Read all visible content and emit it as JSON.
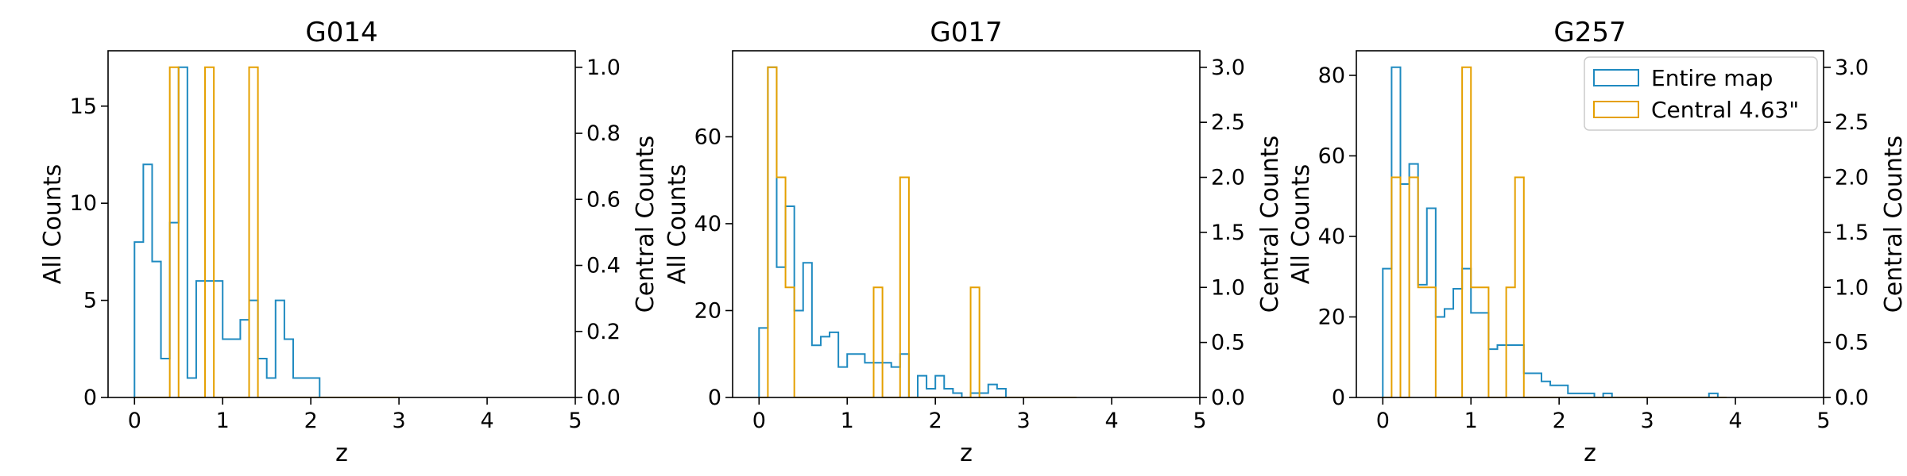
{
  "colors": {
    "entire": "#1f8ac0",
    "central": "#e5a000"
  },
  "legend": {
    "entire": "Entire map",
    "central": "Central 4.63\""
  },
  "chart_data": [
    {
      "type": "bar",
      "histtype": "step",
      "title": "G014",
      "xlabel": "z",
      "ylabel": "All Counts",
      "y2label": "Central Counts",
      "xlim": [
        -0.3,
        5
      ],
      "ylim": [
        0,
        17.85
      ],
      "y2lim": [
        0,
        1.05
      ],
      "xticks": [
        "0",
        "1",
        "2",
        "3",
        "4",
        "5"
      ],
      "yticks": [
        "0",
        "5",
        "10",
        "15"
      ],
      "y2ticks": [
        "0.0",
        "0.2",
        "0.4",
        "0.6",
        "0.8",
        "1.0"
      ],
      "bin_edges": [
        0,
        0.1,
        0.2,
        0.3,
        0.4,
        0.5,
        0.6,
        0.7,
        0.8,
        0.9,
        1.0,
        1.1,
        1.2,
        1.3,
        1.4,
        1.5,
        1.6,
        1.7,
        1.8,
        1.9,
        2.0,
        2.1,
        2.2,
        2.3,
        2.4,
        2.5,
        2.6,
        2.7,
        2.8,
        2.9,
        3.0
      ],
      "series": [
        {
          "name": "Entire map",
          "axis": "left",
          "values": [
            8,
            12,
            7,
            2,
            9,
            17,
            1,
            6,
            6,
            6,
            3,
            3,
            4,
            5,
            2,
            1,
            5,
            3,
            1,
            1,
            1,
            0,
            0,
            0,
            0,
            0,
            0,
            0,
            0,
            0
          ]
        },
        {
          "name": "Central 4.63\"",
          "axis": "right",
          "values": [
            0,
            0,
            0,
            0,
            1,
            0,
            0,
            0,
            1,
            0,
            0,
            0,
            0,
            1,
            0,
            0,
            0,
            0,
            0,
            0,
            0,
            0,
            0,
            0,
            0,
            0,
            0,
            0,
            0,
            0
          ]
        }
      ],
      "show_legend": false
    },
    {
      "type": "bar",
      "histtype": "step",
      "title": "G017",
      "xlabel": "z",
      "ylabel": "All Counts",
      "y2label": "Central Counts",
      "xlim": [
        -0.3,
        5
      ],
      "ylim": [
        0,
        79.8
      ],
      "y2lim": [
        0,
        3.15
      ],
      "xticks": [
        "0",
        "1",
        "2",
        "3",
        "4",
        "5"
      ],
      "yticks": [
        "0",
        "20",
        "40",
        "60"
      ],
      "y2ticks": [
        "0.0",
        "0.5",
        "1.0",
        "1.5",
        "2.0",
        "2.5",
        "3.0"
      ],
      "bin_edges": [
        0,
        0.1,
        0.2,
        0.3,
        0.4,
        0.5,
        0.6,
        0.7,
        0.8,
        0.9,
        1.0,
        1.1,
        1.2,
        1.3,
        1.4,
        1.5,
        1.6,
        1.7,
        1.8,
        1.9,
        2.0,
        2.1,
        2.2,
        2.3,
        2.4,
        2.5,
        2.6,
        2.7,
        2.8,
        2.9,
        3.0,
        3.1,
        3.2,
        3.3,
        3.4,
        3.5,
        3.6
      ],
      "series": [
        {
          "name": "Entire map",
          "axis": "left",
          "values": [
            16,
            76,
            30,
            44,
            20,
            31,
            12,
            14,
            15,
            7,
            10,
            10,
            8,
            8,
            8,
            7,
            10,
            0,
            5,
            2,
            5,
            2,
            1,
            0,
            1,
            1,
            3,
            2,
            0,
            0,
            0,
            0,
            0,
            0,
            0,
            0
          ]
        },
        {
          "name": "Central 4.63\"",
          "axis": "right",
          "values": [
            0,
            3,
            2,
            1,
            0,
            0,
            0,
            0,
            0,
            0,
            0,
            0,
            0,
            1,
            0,
            0,
            2,
            0,
            0,
            0,
            0,
            0,
            0,
            0,
            1,
            0,
            0,
            0,
            0,
            0,
            0,
            0,
            0,
            0,
            0,
            0
          ]
        }
      ],
      "show_legend": false
    },
    {
      "type": "bar",
      "histtype": "step",
      "title": "G257",
      "xlabel": "z",
      "ylabel": "All Counts",
      "y2label": "Central Counts",
      "xlim": [
        -0.3,
        5
      ],
      "ylim": [
        0,
        86.1
      ],
      "y2lim": [
        0,
        3.15
      ],
      "xticks": [
        "0",
        "1",
        "2",
        "3",
        "4",
        "5"
      ],
      "yticks": [
        "0",
        "20",
        "40",
        "60",
        "80"
      ],
      "y2ticks": [
        "0.0",
        "0.5",
        "1.0",
        "1.5",
        "2.0",
        "2.5",
        "3.0"
      ],
      "bin_edges": [
        0,
        0.1,
        0.2,
        0.3,
        0.4,
        0.5,
        0.6,
        0.7,
        0.8,
        0.9,
        1.0,
        1.1,
        1.2,
        1.3,
        1.4,
        1.5,
        1.6,
        1.7,
        1.8,
        1.9,
        2.0,
        2.1,
        2.2,
        2.3,
        2.4,
        2.5,
        2.6,
        2.7,
        2.8,
        2.9,
        3.0,
        3.1,
        3.2,
        3.3,
        3.4,
        3.5,
        3.6,
        3.7,
        3.8,
        3.9
      ],
      "series": [
        {
          "name": "Entire map",
          "axis": "left",
          "values": [
            32,
            82,
            53,
            58,
            28,
            47,
            20,
            22,
            27,
            32,
            21,
            21,
            12,
            13,
            13,
            13,
            6,
            6,
            4,
            3,
            3,
            1,
            1,
            1,
            0,
            1,
            0,
            0,
            0,
            0,
            0,
            0,
            0,
            0,
            0,
            0,
            0,
            1,
            0
          ]
        },
        {
          "name": "Central 4.63\"",
          "axis": "right",
          "values": [
            0,
            2,
            0,
            2,
            1,
            1,
            0,
            0,
            0,
            3,
            1,
            1,
            0,
            0,
            1,
            2,
            0,
            0,
            0,
            0,
            0,
            0,
            0,
            0,
            0,
            0,
            0,
            0,
            0,
            0,
            0,
            0,
            0,
            0,
            0,
            0,
            0,
            0,
            0
          ]
        }
      ],
      "show_legend": true,
      "legend_position": "top-right"
    }
  ]
}
